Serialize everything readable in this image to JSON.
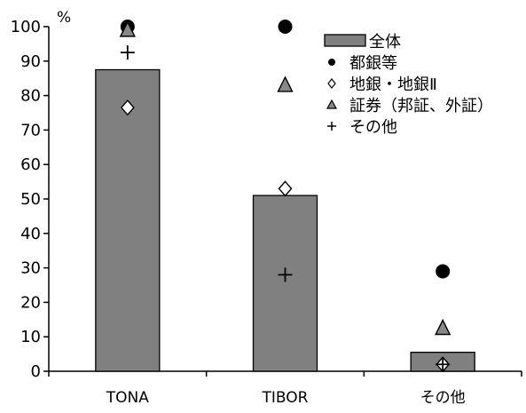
{
  "chart_data": {
    "type": "bar",
    "y_unit_label": "%",
    "ylim": [
      0,
      100
    ],
    "y_ticks": [
      0,
      10,
      20,
      30,
      40,
      50,
      60,
      70,
      80,
      90,
      100
    ],
    "categories": [
      "TONA",
      "TIBOR",
      "その他"
    ],
    "grid": false,
    "legend_position": "top-right",
    "series": [
      {
        "name": "全体",
        "kind": "bar",
        "marker": "bar",
        "values": [
          87.5,
          51,
          5.5
        ]
      },
      {
        "name": "都銀等",
        "kind": "marker",
        "marker": "circle",
        "values": [
          100,
          100,
          29
        ]
      },
      {
        "name": "地銀・地銀Ⅱ",
        "kind": "marker",
        "marker": "diamond",
        "values": [
          76.5,
          53,
          2
        ]
      },
      {
        "name": "証券（邦証、外証）",
        "kind": "marker",
        "marker": "triangle",
        "values": [
          99,
          83,
          12.5
        ]
      },
      {
        "name": "その他",
        "kind": "marker",
        "marker": "plus",
        "values": [
          92.5,
          28,
          2
        ]
      }
    ],
    "colors": {
      "bar_fill": "#808080",
      "bar_stroke": "#000000",
      "marker": "#000000"
    }
  }
}
